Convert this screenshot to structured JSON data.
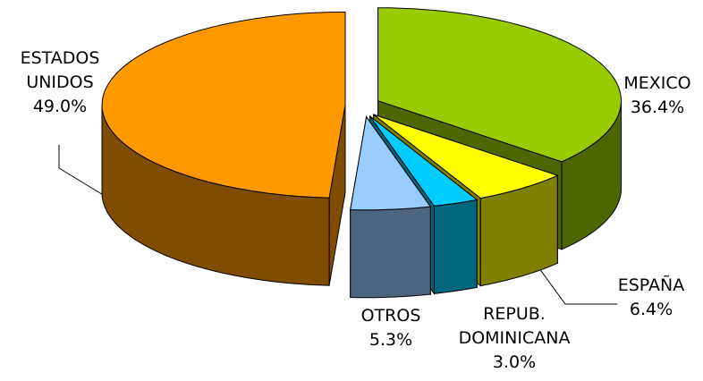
{
  "chart_data": {
    "type": "pie3d",
    "categories": [
      "MEXICO",
      "ESPAÑA",
      "REPUB. DOMINICANA",
      "OTROS",
      "ESTADOS UNIDOS"
    ],
    "values": [
      36.4,
      6.4,
      3.0,
      5.3,
      49.0
    ],
    "value_labels": [
      "36.4%",
      "6.4%",
      "3.0%",
      "5.3%",
      "49.0%"
    ],
    "colors": [
      "#99cc00",
      "#ffff00",
      "#00ccff",
      "#99ccff",
      "#ff9900"
    ]
  }
}
